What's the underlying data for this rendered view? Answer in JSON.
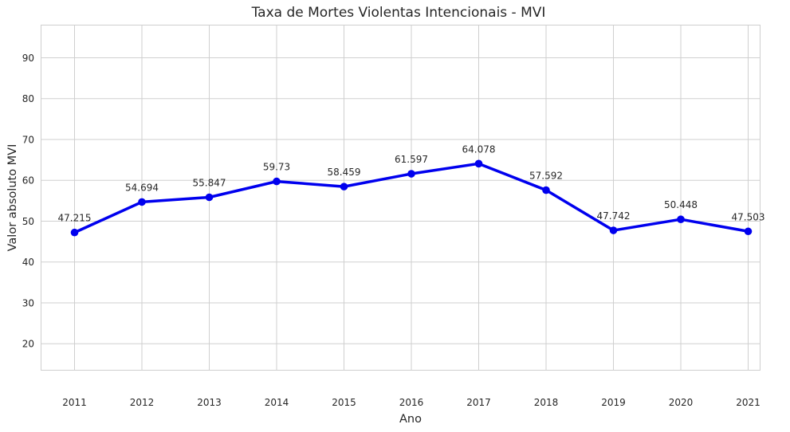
{
  "chart_data": {
    "type": "line",
    "title": "Taxa de Mortes Violentas Intencionais - MVI",
    "xlabel": "Ano",
    "ylabel": "Valor absoluto MVI",
    "x": [
      "2011",
      "2012",
      "2013",
      "2014",
      "2015",
      "2016",
      "2017",
      "2018",
      "2019",
      "2020",
      "2021"
    ],
    "values": [
      47.215,
      54.694,
      55.847,
      59.73,
      58.459,
      61.597,
      64.078,
      57.592,
      47.742,
      50.448,
      47.503
    ],
    "data_labels": [
      "47.215",
      "54.694",
      "55.847",
      "59.73",
      "58.459",
      "61.597",
      "64.078",
      "57.592",
      "47.742",
      "50.448",
      "47.503"
    ],
    "ylim": [
      13.5,
      98
    ],
    "yticks": [
      20,
      30,
      40,
      50,
      60,
      70,
      80,
      90
    ],
    "grid": true,
    "line_color": "#0000ee",
    "marker": "circle"
  }
}
